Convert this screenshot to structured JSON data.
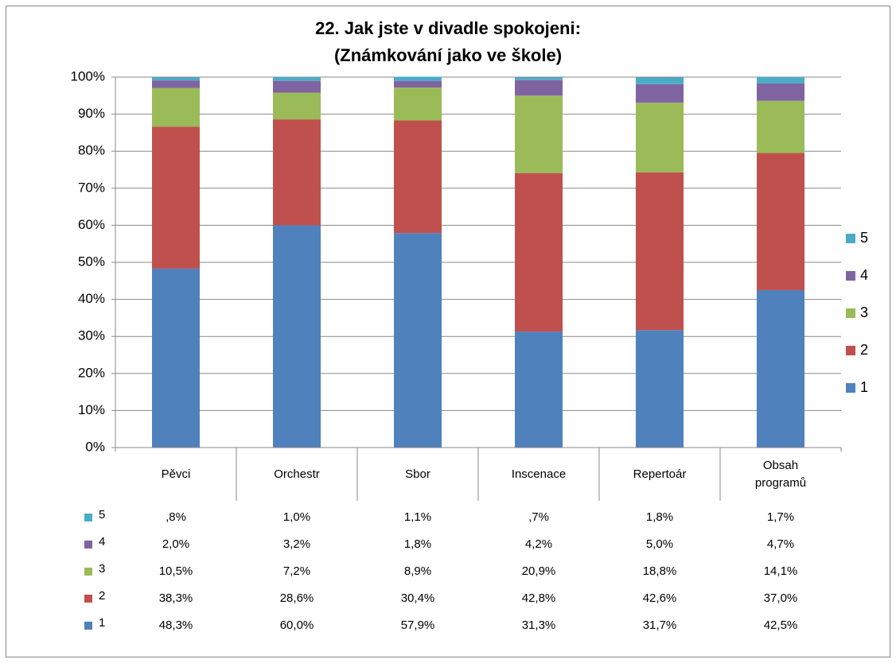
{
  "chart_data": {
    "type": "stacked_bar",
    "title": "22. Jak jste v divadle spokojeni:",
    "subtitle": "(Známkování jako ve škole)",
    "categories": [
      "Pěvci",
      "Orchestr",
      "Sbor",
      "Inscenace",
      "Repertoár",
      "Obsah programů"
    ],
    "series": [
      {
        "name": "1",
        "color": "#4f81bd",
        "values": [
          48.3,
          60.0,
          57.9,
          31.3,
          31.7,
          42.5
        ],
        "value_labels": [
          "48,3%",
          "60,0%",
          "57,9%",
          "31,3%",
          "31,7%",
          "42,5%"
        ]
      },
      {
        "name": "2",
        "color": "#c0504d",
        "values": [
          38.3,
          28.6,
          30.4,
          42.8,
          42.6,
          37.0
        ],
        "value_labels": [
          "38,3%",
          "28,6%",
          "30,4%",
          "42,8%",
          "42,6%",
          "37,0%"
        ]
      },
      {
        "name": "3",
        "color": "#9bbb59",
        "values": [
          10.5,
          7.2,
          8.9,
          20.9,
          18.8,
          14.1
        ],
        "value_labels": [
          "10,5%",
          "7,2%",
          "8,9%",
          "20,9%",
          "18,8%",
          "14,1%"
        ]
      },
      {
        "name": "4",
        "color": "#8064a2",
        "values": [
          2.0,
          3.2,
          1.8,
          4.2,
          5.0,
          4.7
        ],
        "value_labels": [
          "2,0%",
          "3,2%",
          "1,8%",
          "4,2%",
          "5,0%",
          "4,7%"
        ]
      },
      {
        "name": "5",
        "color": "#4bacc6",
        "values": [
          0.8,
          1.0,
          1.1,
          0.7,
          1.8,
          1.7
        ],
        "value_labels": [
          ",8%",
          "1,0%",
          "1,1%",
          ",7%",
          "1,8%",
          "1,7%"
        ]
      }
    ],
    "ylim": [
      0,
      100
    ],
    "yticks": [
      {
        "value": 0,
        "label": "0%"
      },
      {
        "value": 10,
        "label": "10%"
      },
      {
        "value": 20,
        "label": "20%"
      },
      {
        "value": 30,
        "label": "30%"
      },
      {
        "value": 40,
        "label": "40%"
      },
      {
        "value": 50,
        "label": "50%"
      },
      {
        "value": 60,
        "label": "60%"
      },
      {
        "value": 70,
        "label": "70%"
      },
      {
        "value": 80,
        "label": "80%"
      },
      {
        "value": 90,
        "label": "90%"
      },
      {
        "value": 100,
        "label": "100%"
      }
    ],
    "grid": true,
    "legend": "right"
  }
}
